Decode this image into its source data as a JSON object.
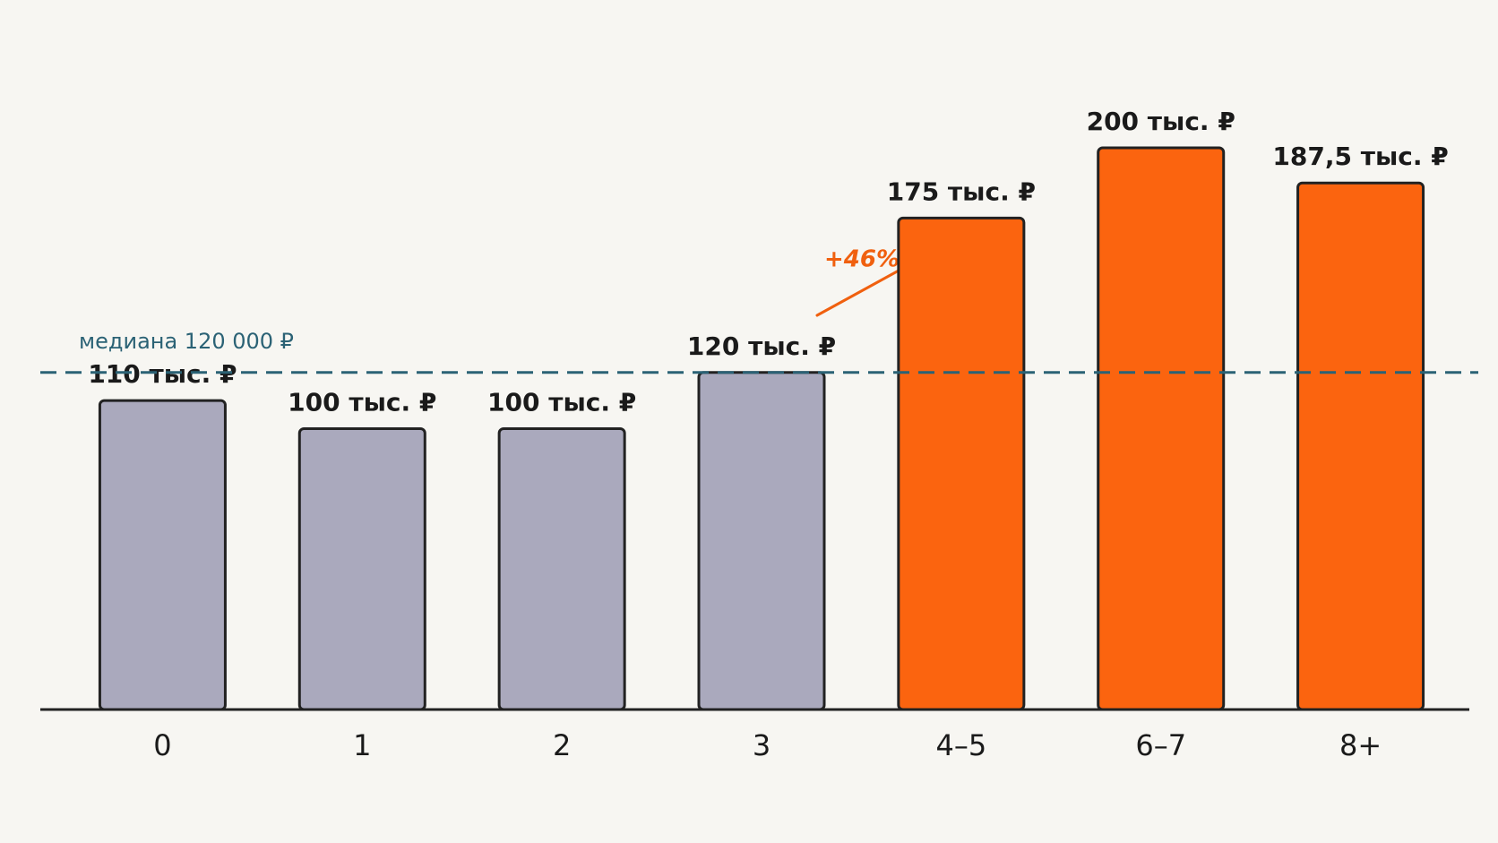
{
  "chart_data": {
    "type": "bar",
    "categories": [
      "0",
      "1",
      "2",
      "3",
      "4–5",
      "6–7",
      "8+"
    ],
    "values": [
      110,
      100,
      100,
      120,
      175,
      200,
      187.5
    ],
    "value_labels": [
      "110 тыс. ₽",
      "100 тыс. ₽",
      "100 тыс. ₽",
      "120 тыс. ₽",
      "175 тыс. ₽",
      "200 тыс. ₽",
      "187,5 тыс. ₽"
    ],
    "colors": [
      "#aaa9bd",
      "#aaa9bd",
      "#aaa9bd",
      "#aaa9bd",
      "#fb640f",
      "#fb640f",
      "#fb640f"
    ],
    "median": {
      "value": 120,
      "label": "медиана 120 000 ₽",
      "color": "#2b6275"
    },
    "annotation": {
      "label": "+46%",
      "color": "#f0600f"
    }
  }
}
